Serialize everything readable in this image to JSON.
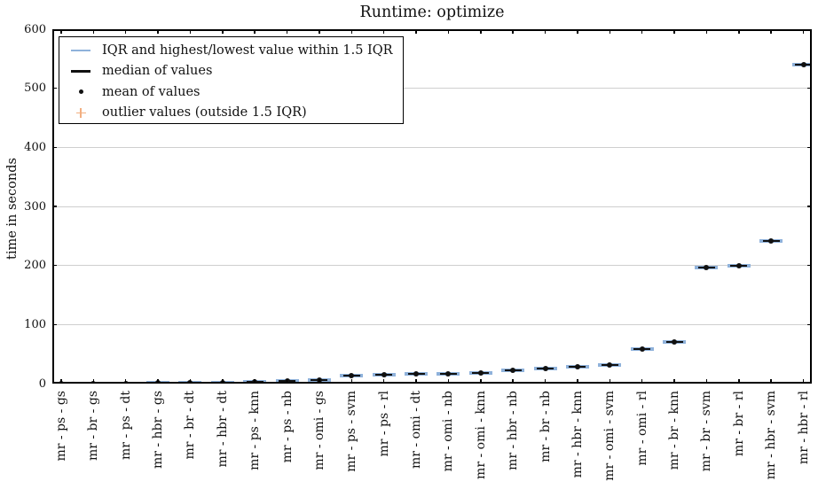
{
  "figure": {
    "title": "Runtime: optimize"
  },
  "axes": {
    "ylabel": "time in seconds",
    "ymin": 0,
    "ymax": 600,
    "yticks": [
      0,
      100,
      200,
      300,
      400,
      500,
      600
    ]
  },
  "legend": {
    "items": [
      {
        "symbol": "iqr-line",
        "label": "IQR and highest/lowest value within 1.5 IQR"
      },
      {
        "symbol": "median-line",
        "label": "median of values"
      },
      {
        "symbol": "mean-dot",
        "label": "mean of values"
      },
      {
        "symbol": "outlier-plus",
        "label": "outlier values (outside 1.5 IQR)"
      }
    ]
  },
  "colors": {
    "iqr_blue": "#8FB2DB",
    "median_black": "#111111",
    "mean_black": "#111111",
    "outlier_orange": "#F2AF81",
    "grid_gray": "#cfcfcf",
    "axis_black": "#000000"
  },
  "chart_data": {
    "type": "boxplot",
    "title": "Runtime: optimize",
    "xlabel": "",
    "ylabel": "time in seconds",
    "ylim": [
      0,
      600
    ],
    "yticks": [
      0,
      100,
      200,
      300,
      400,
      500,
      600
    ],
    "grid": "horizontal",
    "legend_position": "upper left",
    "categories": [
      "mr - ps - gs",
      "mr - br - gs",
      "mr - ps - dt",
      "mr - hbr - gs",
      "mr - br - dt",
      "mr - hbr - dt",
      "mr - ps - knn",
      "mr - ps - nb",
      "mr - omi - gs",
      "mr - ps - svm",
      "mr - ps - rl",
      "mr - omi - dt",
      "mr - omi - nb",
      "mr - omi - knn",
      "mr - hbr - nb",
      "mr - br - nb",
      "mr - hbr - knn",
      "mr - omi - svm",
      "mr - omi - rl",
      "mr - br - knn",
      "mr - br - svm",
      "mr - br - rl",
      "mr - hbr - svm",
      "mr - hbr - rl"
    ],
    "means": [
      0.5,
      0.6,
      0.7,
      0.8,
      1,
      2,
      2.5,
      4,
      6,
      13,
      15,
      16,
      17,
      17.5,
      22.5,
      26,
      29,
      31,
      59,
      70,
      196,
      200,
      241,
      540
    ],
    "medians": [
      0.5,
      0.6,
      0.7,
      0.8,
      1,
      2,
      2.5,
      4,
      6,
      13,
      15,
      16,
      17,
      17.5,
      22.5,
      26,
      29,
      31,
      59,
      70,
      196,
      200,
      241,
      540
    ]
  }
}
